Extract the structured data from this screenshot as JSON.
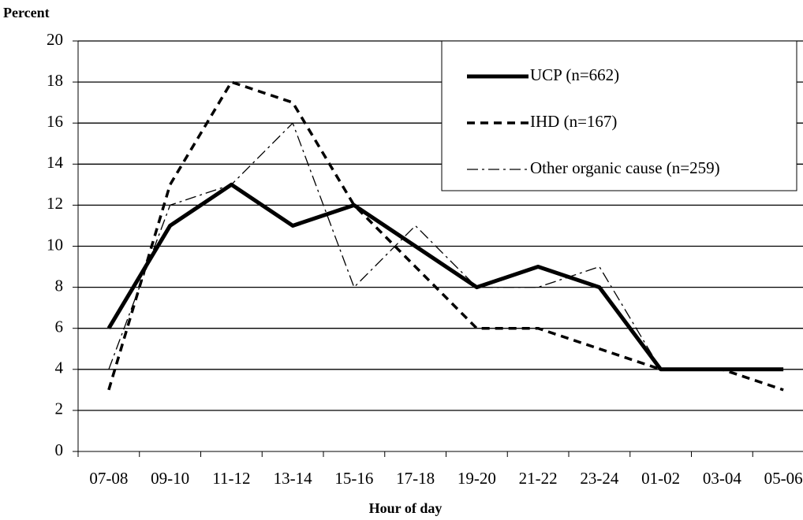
{
  "chart_data": {
    "type": "line",
    "y_axis_label": "Percent",
    "x_axis_label": "Hour of day",
    "categories": [
      "07-08",
      "09-10",
      "11-12",
      "13-14",
      "15-16",
      "17-18",
      "19-20",
      "21-22",
      "23-24",
      "01-02",
      "03-04",
      "05-06"
    ],
    "series": [
      {
        "name": "UCP (n=662)",
        "color": "#000000",
        "line_style": "solid",
        "values": [
          6,
          11,
          13,
          11,
          12,
          10,
          8,
          9,
          8,
          4,
          4,
          4
        ]
      },
      {
        "name": "IHD (n=167)",
        "color": "#000000",
        "line_style": "dashed",
        "values": [
          3,
          13,
          18,
          17,
          12,
          9,
          6,
          6,
          5,
          4,
          4,
          3
        ]
      },
      {
        "name": "Other organic cause (n=259)",
        "color": "#000000",
        "line_style": "dashdot",
        "values": [
          4,
          12,
          13,
          16,
          8,
          11,
          8,
          8,
          9,
          4,
          4,
          4
        ]
      }
    ],
    "ylim": [
      0,
      20
    ],
    "yticks": [
      0,
      2,
      4,
      6,
      8,
      10,
      12,
      14,
      16,
      18,
      20
    ],
    "grid": true,
    "legend": "top-right"
  }
}
